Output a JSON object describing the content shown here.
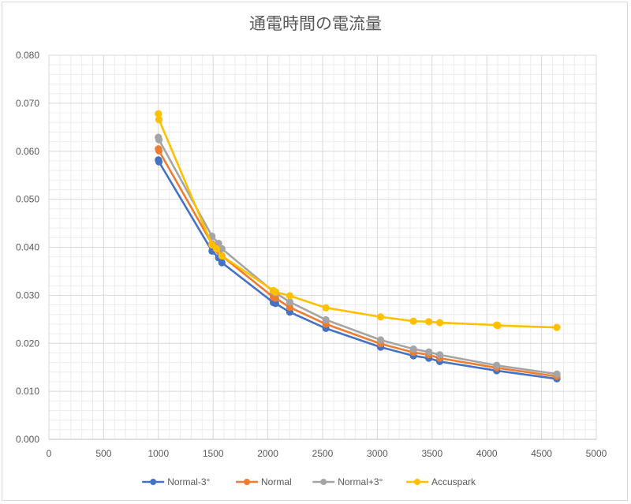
{
  "chart_data": {
    "type": "line",
    "title": "通電時間の電流量",
    "xlabel": "",
    "ylabel": "",
    "xlim": [
      0,
      5000
    ],
    "ylim": [
      0,
      0.08
    ],
    "x_ticks": [
      "0",
      "500",
      "1000",
      "1500",
      "2000",
      "2500",
      "3000",
      "3500",
      "4000",
      "4500",
      "5000"
    ],
    "y_ticks": [
      "0.000",
      "0.010",
      "0.020",
      "0.030",
      "0.040",
      "0.050",
      "0.060",
      "0.070",
      "0.080"
    ],
    "grid": "major and minor",
    "legend_position": "bottom",
    "series": [
      {
        "name": "Normal-3°",
        "color": "#4472c4",
        "points": [
          [
            1000,
            0.0582
          ],
          [
            1005,
            0.0578
          ],
          [
            1490,
            0.0392
          ],
          [
            1550,
            0.0378
          ],
          [
            1580,
            0.0368
          ],
          [
            2050,
            0.0285
          ],
          [
            2070,
            0.0283
          ],
          [
            2200,
            0.0265
          ],
          [
            2530,
            0.0231
          ],
          [
            3030,
            0.0192
          ],
          [
            3330,
            0.0174
          ],
          [
            3470,
            0.0169
          ],
          [
            3570,
            0.0162
          ],
          [
            4090,
            0.0143
          ],
          [
            4640,
            0.0126
          ]
        ]
      },
      {
        "name": "Normal",
        "color": "#ed7d31",
        "points": [
          [
            1000,
            0.0605
          ],
          [
            1005,
            0.0601
          ],
          [
            1490,
            0.0407
          ],
          [
            1550,
            0.0393
          ],
          [
            1580,
            0.0382
          ],
          [
            2050,
            0.0296
          ],
          [
            2070,
            0.0294
          ],
          [
            2200,
            0.0275
          ],
          [
            2530,
            0.024
          ],
          [
            3030,
            0.0199
          ],
          [
            3330,
            0.0181
          ],
          [
            3470,
            0.0176
          ],
          [
            3570,
            0.0169
          ],
          [
            4090,
            0.0149
          ],
          [
            4640,
            0.0131
          ]
        ]
      },
      {
        "name": "Normal+3°",
        "color": "#a5a5a5",
        "points": [
          [
            1000,
            0.0629
          ],
          [
            1005,
            0.0624
          ],
          [
            1490,
            0.0423
          ],
          [
            1550,
            0.0408
          ],
          [
            1580,
            0.0397
          ],
          [
            2050,
            0.0308
          ],
          [
            2070,
            0.0305
          ],
          [
            2200,
            0.0286
          ],
          [
            2530,
            0.0249
          ],
          [
            3030,
            0.0207
          ],
          [
            3330,
            0.0188
          ],
          [
            3470,
            0.0182
          ],
          [
            3570,
            0.0176
          ],
          [
            4090,
            0.0154
          ],
          [
            4640,
            0.0136
          ]
        ]
      },
      {
        "name": "Accuspark",
        "color": "#ffc000",
        "points": [
          [
            1000,
            0.0678
          ],
          [
            1005,
            0.0666
          ],
          [
            1490,
            0.0405
          ],
          [
            1530,
            0.0397
          ],
          [
            1580,
            0.0382
          ],
          [
            2050,
            0.031
          ],
          [
            2070,
            0.0307
          ],
          [
            2200,
            0.0299
          ],
          [
            2530,
            0.0274
          ],
          [
            3030,
            0.0255
          ],
          [
            3330,
            0.0246
          ],
          [
            3470,
            0.0245
          ],
          [
            3570,
            0.0243
          ],
          [
            4090,
            0.0238
          ],
          [
            4100,
            0.0237
          ],
          [
            4640,
            0.0233
          ]
        ]
      }
    ]
  }
}
